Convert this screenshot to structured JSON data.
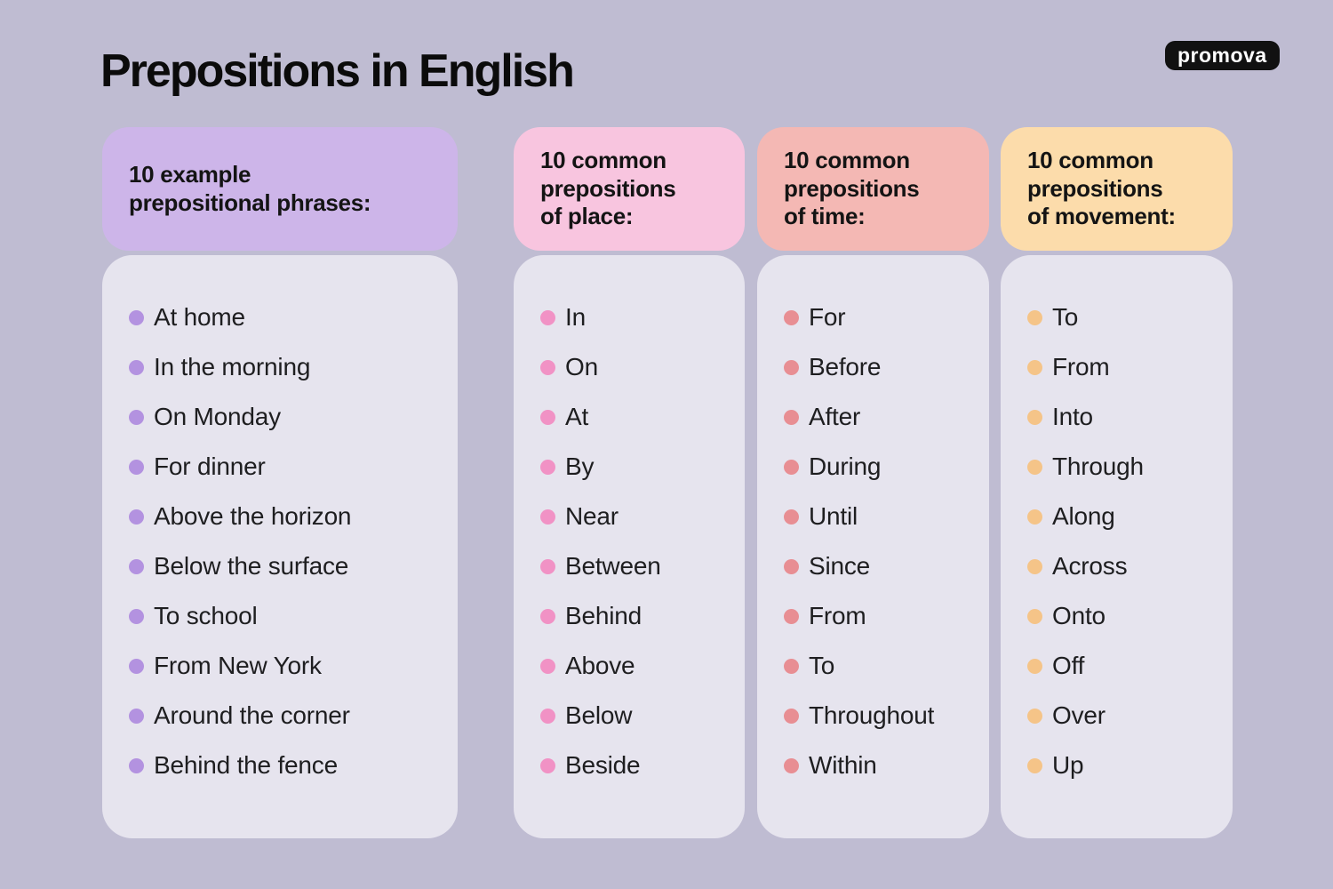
{
  "title": "Prepositions in English",
  "logo": {
    "text": "promova",
    "bg": "#111111",
    "fg": "#ffffff"
  },
  "colors": {
    "page_bg": "#bfbcd2",
    "card_bg": "#e6e4ee"
  },
  "columns": [
    {
      "id": "prepositional-phrases",
      "header": "10 example\nprepositional phrases:",
      "header_bg": "#cdb5e9",
      "bullet_color": "#b392e0",
      "items": [
        "At home",
        "In the morning",
        "On Monday",
        "For dinner",
        "Above the horizon",
        "Below the surface",
        "To school",
        "From New York",
        "Around the corner",
        "Behind the fence"
      ]
    },
    {
      "id": "place",
      "header": "10 common\nprepositions\nof place:",
      "header_bg": "#f8c5df",
      "bullet_color": "#f192c5",
      "items": [
        "In",
        "On",
        "At",
        "By",
        "Near",
        "Between",
        "Behind",
        "Above",
        "Below",
        "Beside"
      ]
    },
    {
      "id": "time",
      "header": "10 common\nprepositions\nof time:",
      "header_bg": "#f4b8b4",
      "bullet_color": "#e88e93",
      "items": [
        "For",
        "Before",
        "After",
        "During",
        "Until",
        "Since",
        "From",
        "To",
        "Throughout",
        "Within"
      ]
    },
    {
      "id": "movement",
      "header": "10 common\nprepositions\nof movement:",
      "header_bg": "#fcdcab",
      "bullet_color": "#f5c488",
      "items": [
        "To",
        "From",
        "Into",
        "Through",
        "Along",
        "Across",
        "Onto",
        "Off",
        "Over",
        "Up"
      ]
    }
  ]
}
